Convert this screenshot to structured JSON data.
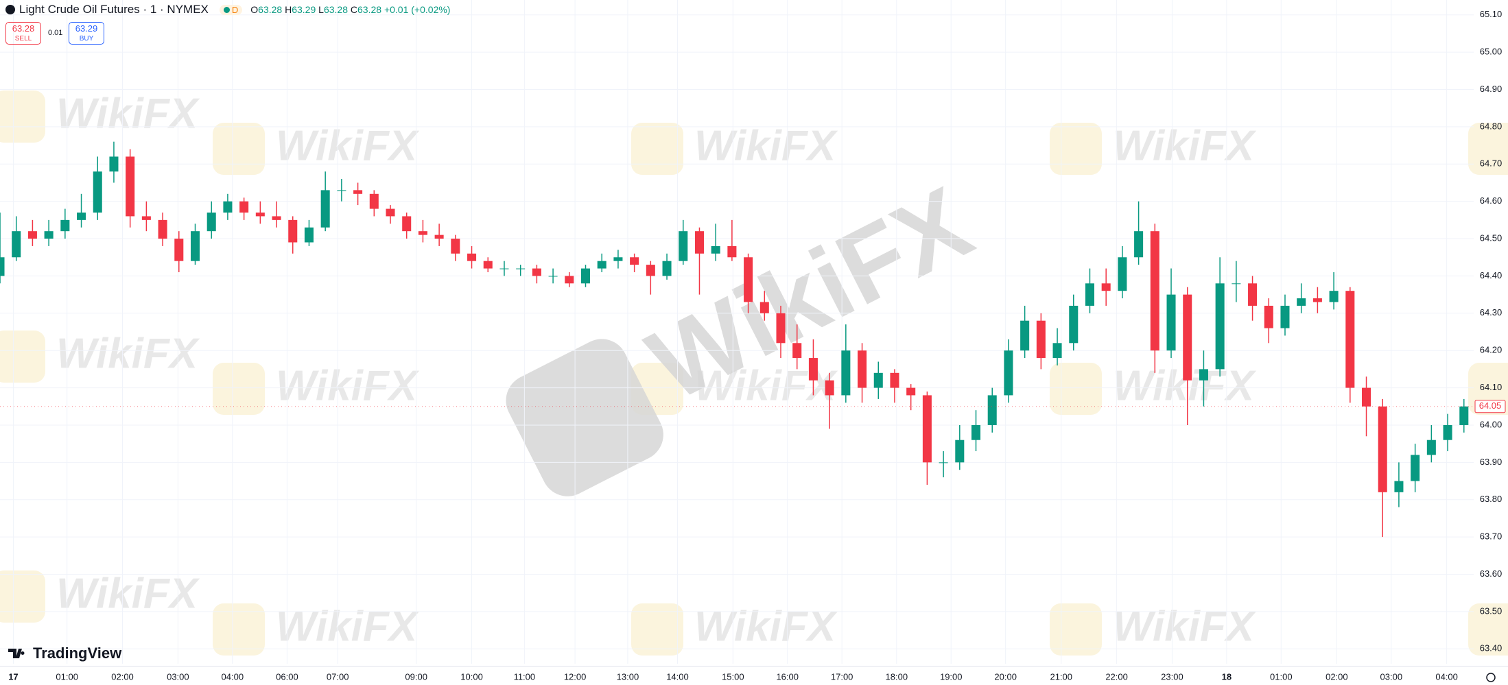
{
  "header": {
    "title": "Light Crude Oil Futures · 1 · NYMEX",
    "badge": "D",
    "ohlc": [
      {
        "label": "O",
        "value": 63.28
      },
      {
        "label": "H",
        "value": 63.29
      },
      {
        "label": "L",
        "value": 63.28
      },
      {
        "label": "C",
        "value": 63.28
      }
    ],
    "change": "+0.01 (+0.02%)",
    "sell": {
      "price": 63.28,
      "label": "SELL"
    },
    "spread": 0.01,
    "buy": {
      "price": 63.29,
      "label": "BUY"
    }
  },
  "brand": "TradingView",
  "watermark": "WikiFX",
  "chart_data": {
    "type": "candlestick",
    "up_color": "#089981",
    "down_color": "#f23645",
    "grid": true,
    "last_price": 64.05,
    "open": [
      64.4,
      64.45,
      64.52,
      64.5,
      64.52,
      64.55,
      64.57,
      64.68,
      64.72,
      64.56,
      64.55,
      64.5,
      64.44,
      64.52,
      64.57,
      64.6,
      64.57,
      64.56,
      64.55,
      64.49,
      64.53,
      64.63,
      64.63,
      64.62,
      64.58,
      64.56,
      64.52,
      64.51,
      64.5,
      64.46,
      64.44,
      64.42,
      64.42,
      64.42,
      64.4,
      64.4,
      64.38,
      64.42,
      64.44,
      64.45,
      64.43,
      64.4,
      64.44,
      64.52,
      64.46,
      64.48,
      64.45,
      64.33,
      64.3,
      64.22,
      64.18,
      64.12,
      64.08,
      64.2,
      64.1,
      64.14,
      64.1,
      64.08,
      63.9,
      63.9,
      63.96,
      64.0,
      64.08,
      64.2,
      64.28,
      64.18,
      64.22,
      64.32,
      64.38,
      64.36,
      64.45,
      64.52,
      64.2,
      64.35,
      64.12,
      64.15,
      64.38,
      64.38,
      64.32,
      64.26,
      64.32,
      64.34,
      64.33,
      64.36,
      64.1,
      64.05,
      63.82,
      63.85,
      63.92,
      63.96,
      64.0
    ],
    "high": [
      64.57,
      64.56,
      64.55,
      64.55,
      64.58,
      64.62,
      64.72,
      64.76,
      64.74,
      64.6,
      64.57,
      64.52,
      64.54,
      64.6,
      64.62,
      64.61,
      64.6,
      64.6,
      64.56,
      64.55,
      64.68,
      64.66,
      64.65,
      64.63,
      64.59,
      64.57,
      64.55,
      64.54,
      64.51,
      64.48,
      64.45,
      64.44,
      64.43,
      64.43,
      64.42,
      64.41,
      64.43,
      64.46,
      64.47,
      64.46,
      64.44,
      64.46,
      64.55,
      64.53,
      64.54,
      64.55,
      64.46,
      64.36,
      64.32,
      64.27,
      64.23,
      64.14,
      64.27,
      64.22,
      64.17,
      64.15,
      64.11,
      64.09,
      63.93,
      64.0,
      64.04,
      64.1,
      64.23,
      64.32,
      64.3,
      64.26,
      64.35,
      64.42,
      64.42,
      64.48,
      64.6,
      64.54,
      64.42,
      64.37,
      64.2,
      64.45,
      64.44,
      64.4,
      64.34,
      64.35,
      64.38,
      64.37,
      64.41,
      64.37,
      64.13,
      64.07,
      63.9,
      63.95,
      64.0,
      64.03,
      64.07
    ],
    "low": [
      64.38,
      64.44,
      64.48,
      64.48,
      64.5,
      64.53,
      64.55,
      64.65,
      64.53,
      64.52,
      64.48,
      64.41,
      64.43,
      64.5,
      64.55,
      64.55,
      64.54,
      64.53,
      64.46,
      64.48,
      64.52,
      64.6,
      64.59,
      64.56,
      64.54,
      64.5,
      64.49,
      64.48,
      64.44,
      64.42,
      64.41,
      64.4,
      64.4,
      64.38,
      64.38,
      64.37,
      64.37,
      64.41,
      64.42,
      64.41,
      64.35,
      64.39,
      64.43,
      64.35,
      64.44,
      64.44,
      64.3,
      64.28,
      64.18,
      64.15,
      64.08,
      63.99,
      64.06,
      64.06,
      64.07,
      64.06,
      64.04,
      63.84,
      63.86,
      63.88,
      63.93,
      63.98,
      64.06,
      64.18,
      64.15,
      64.16,
      64.2,
      64.3,
      64.32,
      64.34,
      64.43,
      64.14,
      64.18,
      64.0,
      64.05,
      64.13,
      64.33,
      64.28,
      64.22,
      64.24,
      64.3,
      64.3,
      64.31,
      64.06,
      63.97,
      63.7,
      63.78,
      63.82,
      63.9,
      63.93,
      63.98
    ],
    "close": [
      64.45,
      64.52,
      64.5,
      64.52,
      64.55,
      64.57,
      64.68,
      64.72,
      64.56,
      64.55,
      64.5,
      64.44,
      64.52,
      64.57,
      64.6,
      64.57,
      64.56,
      64.55,
      64.49,
      64.53,
      64.63,
      64.63,
      64.62,
      64.58,
      64.56,
      64.52,
      64.51,
      64.5,
      64.46,
      64.44,
      64.42,
      64.42,
      64.42,
      64.4,
      64.4,
      64.38,
      64.42,
      64.44,
      64.45,
      64.43,
      64.4,
      64.44,
      64.52,
      64.46,
      64.48,
      64.45,
      64.33,
      64.3,
      64.22,
      64.18,
      64.12,
      64.08,
      64.2,
      64.1,
      64.14,
      64.1,
      64.08,
      63.9,
      63.9,
      63.96,
      64.0,
      64.08,
      64.2,
      64.28,
      64.18,
      64.22,
      64.32,
      64.38,
      64.36,
      64.45,
      64.52,
      64.2,
      64.35,
      64.12,
      64.15,
      64.38,
      64.38,
      64.32,
      64.26,
      64.32,
      64.34,
      64.33,
      64.36,
      64.1,
      64.05,
      63.82,
      63.85,
      63.92,
      63.96,
      64.0,
      64.05
    ],
    "xlim": [
      0,
      90.6
    ],
    "xticks": [
      {
        "value": 0.82,
        "label": "17"
      },
      {
        "value": 4.12,
        "label": "01:00"
      },
      {
        "value": 7.53,
        "label": "02:00"
      },
      {
        "value": 10.94,
        "label": "03:00"
      },
      {
        "value": 14.29,
        "label": "04:00"
      },
      {
        "value": 17.65,
        "label": "06:00"
      },
      {
        "value": 20.76,
        "label": "07:00"
      },
      {
        "value": 25.59,
        "label": "09:00"
      },
      {
        "value": 29,
        "label": "10:00"
      },
      {
        "value": 32.24,
        "label": "11:00"
      },
      {
        "value": 35.35,
        "label": "12:00"
      },
      {
        "value": 38.59,
        "label": "13:00"
      },
      {
        "value": 41.65,
        "label": "14:00"
      },
      {
        "value": 45.06,
        "label": "15:00"
      },
      {
        "value": 48.41,
        "label": "16:00"
      },
      {
        "value": 51.76,
        "label": "17:00"
      },
      {
        "value": 55.12,
        "label": "18:00"
      },
      {
        "value": 58.47,
        "label": "19:00"
      },
      {
        "value": 61.82,
        "label": "20:00"
      },
      {
        "value": 65.24,
        "label": "21:00"
      },
      {
        "value": 68.65,
        "label": "22:00"
      },
      {
        "value": 72.06,
        "label": "23:00"
      },
      {
        "value": 75.41,
        "label": "18"
      },
      {
        "value": 78.76,
        "label": "01:00"
      },
      {
        "value": 82.18,
        "label": "02:00"
      },
      {
        "value": 85.53,
        "label": "03:00"
      },
      {
        "value": 88.94,
        "label": "04:00"
      }
    ],
    "ylim": [
      63.36,
      65.14
    ],
    "yticks": [
      {
        "value": 63.4,
        "label": "63.40"
      },
      {
        "value": 63.5,
        "label": "63.50"
      },
      {
        "value": 63.6,
        "label": "63.60"
      },
      {
        "value": 63.7,
        "label": "63.70"
      },
      {
        "value": 63.8,
        "label": "63.80"
      },
      {
        "value": 63.9,
        "label": "63.90"
      },
      {
        "value": 64.0,
        "label": "64.00"
      },
      {
        "value": 64.1,
        "label": "64.10"
      },
      {
        "value": 64.2,
        "label": "64.20"
      },
      {
        "value": 64.3,
        "label": "64.30"
      },
      {
        "value": 64.4,
        "label": "64.40"
      },
      {
        "value": 64.5,
        "label": "64.50"
      },
      {
        "value": 64.6,
        "label": "64.60"
      },
      {
        "value": 64.7,
        "label": "64.70"
      },
      {
        "value": 64.8,
        "label": "64.80"
      },
      {
        "value": 64.9,
        "label": "64.90"
      },
      {
        "value": 65.0,
        "label": "65.00"
      },
      {
        "value": 65.1,
        "label": "65.10"
      }
    ]
  }
}
